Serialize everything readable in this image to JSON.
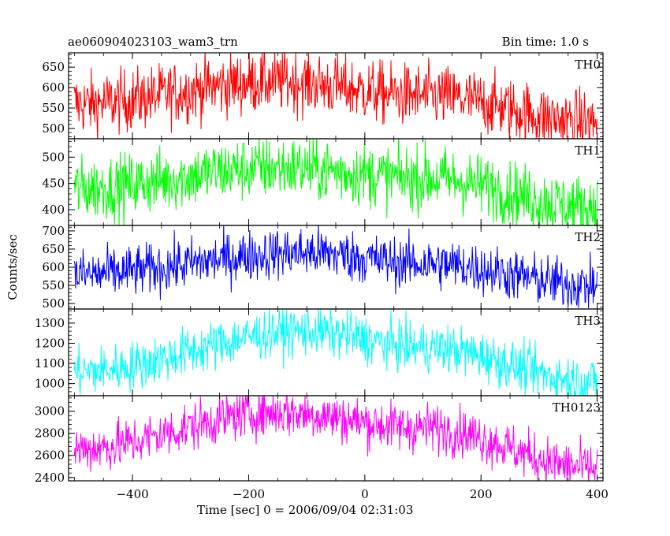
{
  "header": {
    "left_title": "ae060904023103_wam3_trn",
    "right_title": "Bin time: 1.0 s"
  },
  "chart_data": {
    "type": "line",
    "xlabel": "Time [sec] 0 = 2006/09/04 02:31:03",
    "ylabel": "Counts/sec",
    "xlim": [
      -510,
      410
    ],
    "xticks": [
      -400,
      -200,
      0,
      200,
      400
    ],
    "x_start": -500,
    "x_end": 400,
    "bin_time": 1.0,
    "panels": [
      {
        "name": "TH0",
        "color": "#ff0000",
        "ylim": [
          475,
          685
        ],
        "yticks": [
          500,
          550,
          600,
          650
        ],
        "trend": [
          [
            -500,
            560
          ],
          [
            -150,
            615
          ],
          [
            100,
            580
          ],
          [
            400,
            515
          ]
        ],
        "noise": 38
      },
      {
        "name": "TH1",
        "color": "#00ff00",
        "ylim": [
          370,
          535
        ],
        "yticks": [
          400,
          450,
          500
        ],
        "trend": [
          [
            -500,
            440
          ],
          [
            -150,
            480
          ],
          [
            100,
            460
          ],
          [
            400,
            405
          ]
        ],
        "noise": 30
      },
      {
        "name": "TH2",
        "color": "#0000ff",
        "ylim": [
          485,
          715
        ],
        "yticks": [
          500,
          550,
          600,
          650,
          700
        ],
        "trend": [
          [
            -500,
            580
          ],
          [
            -100,
            640
          ],
          [
            100,
            610
          ],
          [
            400,
            550
          ]
        ],
        "noise": 35
      },
      {
        "name": "TH3",
        "color": "#00ffff",
        "ylim": [
          940,
          1370
        ],
        "yticks": [
          1000,
          1100,
          1200,
          1300
        ],
        "trend": [
          [
            -500,
            1060
          ],
          [
            -100,
            1260
          ],
          [
            100,
            1180
          ],
          [
            400,
            1010
          ]
        ],
        "noise": 60
      },
      {
        "name": "TH0123",
        "color": "#ff00ff",
        "ylim": [
          2370,
          3140
        ],
        "yticks": [
          2400,
          2600,
          2800,
          3000
        ],
        "trend": [
          [
            -500,
            2660
          ],
          [
            -150,
            2990
          ],
          [
            100,
            2850
          ],
          [
            400,
            2480
          ]
        ],
        "noise": 110
      }
    ]
  }
}
